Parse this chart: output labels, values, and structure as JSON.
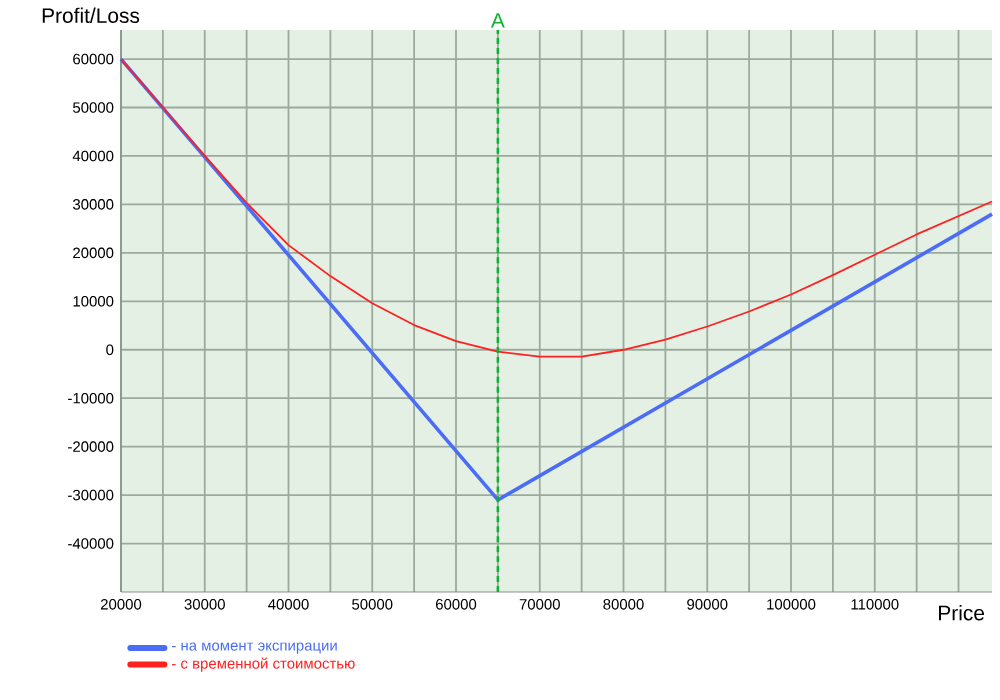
{
  "chart_data": {
    "type": "line",
    "xlabel": "Price",
    "ylabel": "Profit/Loss",
    "xlim": [
      20000,
      124000
    ],
    "ylim": [
      -50000,
      66000
    ],
    "xticks": [
      20000,
      {
        "value": 25000,
        "label": null
      },
      30000,
      {
        "value": 35000,
        "label": null
      },
      40000,
      {
        "value": 45000,
        "label": null
      },
      50000,
      {
        "value": 55000,
        "label": null
      },
      60000,
      {
        "value": 65000,
        "label": null
      },
      70000,
      {
        "value": 75000,
        "label": null
      },
      80000,
      {
        "value": 85000,
        "label": null
      },
      90000,
      {
        "value": 95000,
        "label": null
      },
      100000,
      {
        "value": 105000,
        "label": null
      },
      110000,
      {
        "value": 115000,
        "label": null
      },
      {
        "value": 120000,
        "label": null
      }
    ],
    "yticks": [
      -40000,
      -30000,
      -20000,
      -10000,
      0,
      10000,
      20000,
      30000,
      40000,
      50000,
      60000
    ],
    "grid": true,
    "legend": "bottom left",
    "series": [
      {
        "name": "- на момент экспирации",
        "color": "#4a6cf7",
        "x": [
          20000,
          65000,
          124000
        ],
        "values": [
          60000,
          -31000,
          28000
        ]
      },
      {
        "name": "- с временной стоимостью",
        "color": "#ff2020",
        "x": [
          20000,
          25000,
          30000,
          35000,
          40000,
          45000,
          50000,
          55000,
          60000,
          65000,
          70000,
          75000,
          80000,
          85000,
          90000,
          95000,
          100000,
          105000,
          110000,
          115000,
          124000
        ],
        "values": [
          60000,
          50000,
          40000,
          30300,
          21600,
          15200,
          9600,
          5100,
          1800,
          -400,
          -1400,
          -1400,
          0,
          2100,
          4800,
          7900,
          11400,
          15400,
          19600,
          23800,
          30600
        ]
      }
    ],
    "ref_lines": [
      {
        "axis": "x",
        "value": 65000,
        "label": "A",
        "color": "#10b030",
        "line_style": "dashed"
      }
    ]
  }
}
